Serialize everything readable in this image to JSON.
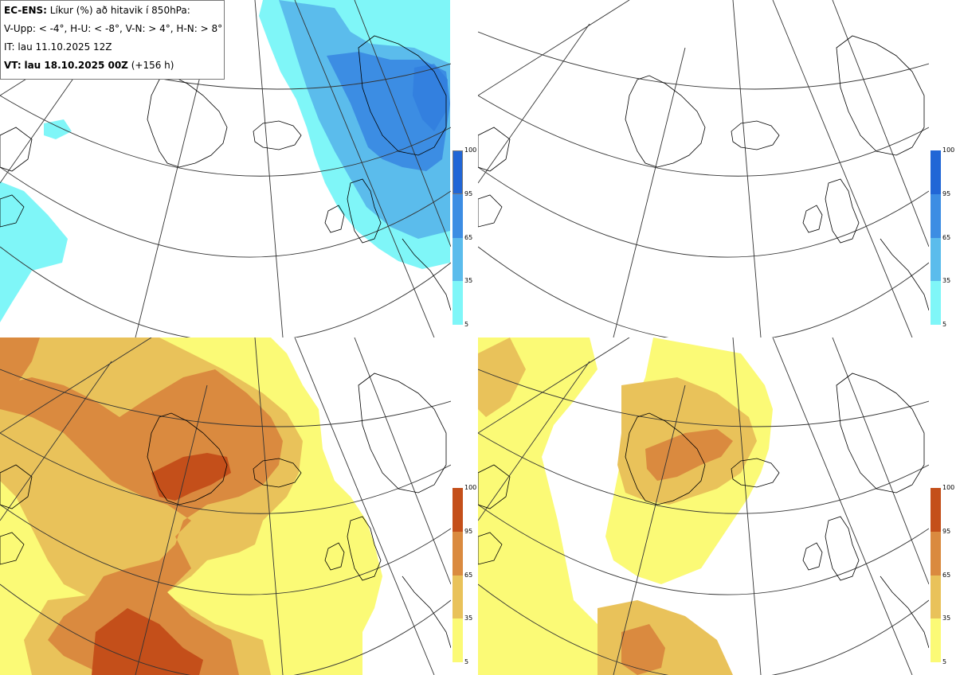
{
  "header": {
    "model": "EC-ENS:",
    "description": "Líkur (%) að hitavik í 850hPa:",
    "thresholds": "V-Upp: < -4°, H-U: < -8°, V-N: > 4°, H-N: > 8°",
    "initial_time": "IT: lau 11.10.2025 12Z",
    "valid_label": "VT:",
    "valid_time": "lau 18.10.2025 00Z",
    "lead": "(+156 h)"
  },
  "panels": [
    {
      "id": "top-left",
      "kind": "cold",
      "threshold": "< -4°"
    },
    {
      "id": "top-right",
      "kind": "cold",
      "threshold": "< -8°"
    },
    {
      "id": "bottom-left",
      "kind": "warm",
      "threshold": "> 4°"
    },
    {
      "id": "bottom-right",
      "kind": "warm",
      "threshold": "> 8°"
    }
  ],
  "colorbar": {
    "ticks": [
      "100",
      "95",
      "65",
      "35",
      "5"
    ],
    "cold_colors": [
      "#2166d6",
      "#3c8de3",
      "#5bbcec",
      "#7ff6f8"
    ],
    "warm_colors": [
      "#c44f1a",
      "#da8a3f",
      "#e9c25a",
      "#fbfa76"
    ]
  },
  "colors": {
    "coast": "#000000",
    "grid": "#333333",
    "background": "#ffffff"
  }
}
